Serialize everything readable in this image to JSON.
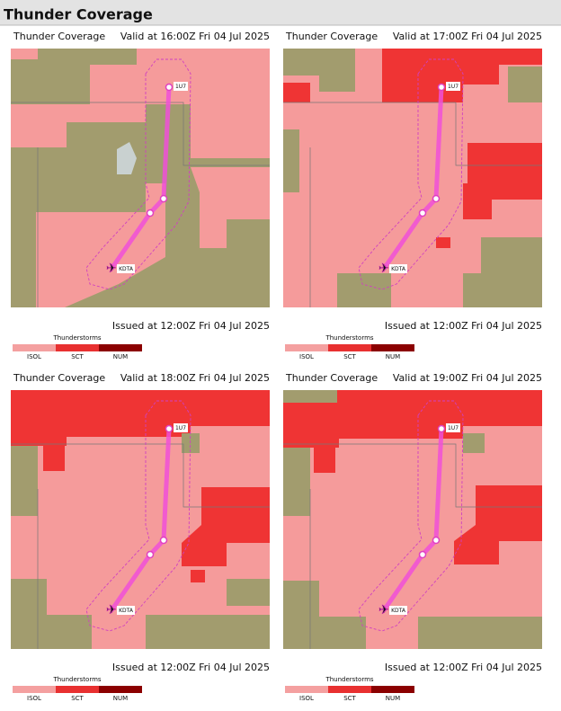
{
  "header": {
    "title": "Thunder Coverage"
  },
  "panels": [
    {
      "title": "Thunder Coverage",
      "valid": "Valid at 16:00Z Fri 04 Jul 2025",
      "issued": "Issued at 12:00Z Fri 04 Jul 2025",
      "legend": {
        "title": "Thunderstorms",
        "items": [
          "ISOL",
          "SCT",
          "NUM"
        ]
      },
      "waypoints": [
        "1U7",
        "KDTA"
      ]
    },
    {
      "title": "Thunder Coverage",
      "valid": "Valid at 17:00Z Fri 04 Jul 2025",
      "issued": "Issued at 12:00Z Fri 04 Jul 2025",
      "legend": {
        "title": "Thunderstorms",
        "items": [
          "ISOL",
          "SCT",
          "NUM"
        ]
      },
      "waypoints": [
        "1U7",
        "KDTA"
      ]
    },
    {
      "title": "Thunder Coverage",
      "valid": "Valid at 18:00Z Fri 04 Jul 2025",
      "issued": "Issued at 12:00Z Fri 04 Jul 2025",
      "legend": {
        "title": "Thunderstorms",
        "items": [
          "ISOL",
          "SCT",
          "NUM"
        ]
      },
      "waypoints": [
        "1U7",
        "KDTA"
      ]
    },
    {
      "title": "Thunder Coverage",
      "valid": "Valid at 19:00Z Fri 04 Jul 2025",
      "issued": "Issued at 12:00Z Fri 04 Jul 2025",
      "legend": {
        "title": "Thunderstorms",
        "items": [
          "ISOL",
          "SCT",
          "NUM"
        ]
      },
      "waypoints": [
        "1U7",
        "KDTA"
      ]
    }
  ]
}
